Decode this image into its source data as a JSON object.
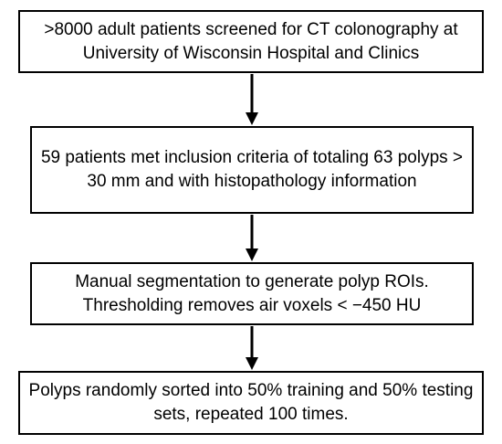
{
  "flowchart": {
    "steps": [
      {
        "text": ">8000 adult patients screened for CT colonography at University of Wisconsin Hospital and Clinics"
      },
      {
        "text": "59 patients met inclusion criteria of totaling 63 polyps > 30 mm and with histopathology information"
      },
      {
        "text": "Manual segmentation to generate polyp ROIs. Thresholding removes air voxels < −450 HU"
      },
      {
        "text": "Polyps randomly sorted into 50% training and 50% testing sets, repeated 100 times."
      }
    ],
    "colors": {
      "border": "#000000",
      "arrow": "#000000",
      "background": "#ffffff"
    }
  }
}
